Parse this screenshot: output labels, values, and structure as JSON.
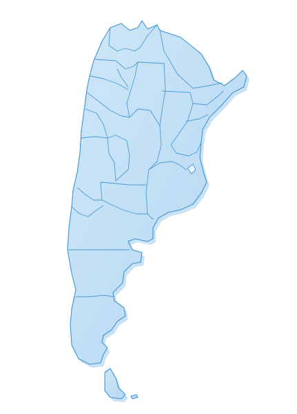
{
  "map": {
    "country": "argentina",
    "land_color": "#b7daf4",
    "land_light_color": "#cfe7f8",
    "border_color": "#3b93d4",
    "shadow_color": "#9fcbec",
    "background_color": "#ffffff"
  }
}
